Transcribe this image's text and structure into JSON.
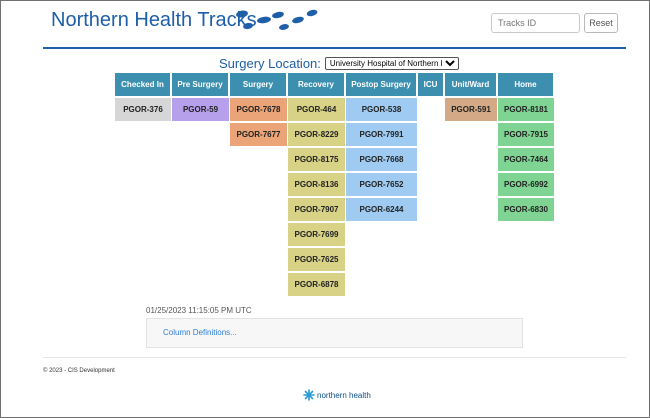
{
  "app": {
    "title": "Northern Health Tracks"
  },
  "search": {
    "placeholder": "Tracks ID",
    "value": ""
  },
  "reset_label": "Reset",
  "location": {
    "label": "Surgery Location:",
    "selected": "University Hospital of Northern BC"
  },
  "colors": {
    "brand_blue": "#1f5fa8",
    "header_teal": "#3d8fb0",
    "checked_in": "#d6d6d6",
    "pre_surgery": "#b6a0eb",
    "surgery": "#eaa477",
    "recovery": "#d8d286",
    "postop": "#9fcbf2",
    "unit_ward": "#d3a986",
    "home": "#80d493"
  },
  "board": {
    "columns": [
      {
        "key": "checked_in",
        "label": "Checked In",
        "items": [
          "PGOR-376"
        ]
      },
      {
        "key": "pre_surgery",
        "label": "Pre Surgery",
        "items": [
          "PGOR-59"
        ]
      },
      {
        "key": "surgery",
        "label": "Surgery",
        "items": [
          "PGOR-7678",
          "PGOR-7677"
        ]
      },
      {
        "key": "recovery",
        "label": "Recovery",
        "items": [
          "PGOR-464",
          "PGOR-8229",
          "PGOR-8175",
          "PGOR-8136",
          "PGOR-7907",
          "PGOR-7699",
          "PGOR-7625",
          "PGOR-6878"
        ]
      },
      {
        "key": "postop",
        "label": "Postop Surgery",
        "items": [
          "PGOR-538",
          "PGOR-7991",
          "PGOR-7668",
          "PGOR-7652",
          "PGOR-6244"
        ]
      },
      {
        "key": "icu",
        "label": "ICU",
        "items": []
      },
      {
        "key": "unit_ward",
        "label": "Unit/Ward",
        "items": [
          "PGOR-591"
        ]
      },
      {
        "key": "home",
        "label": "Home",
        "items": [
          "PGOR-8181",
          "PGOR-7915",
          "PGOR-7464",
          "PGOR-6992",
          "PGOR-6830"
        ]
      }
    ]
  },
  "timestamp": "01/25/2023 11:15:05 PM UTC",
  "definitions_link": "Column Definitions...",
  "footer": {
    "copyright": "© 2023 - CIS Development",
    "logo_text": "northern health"
  }
}
